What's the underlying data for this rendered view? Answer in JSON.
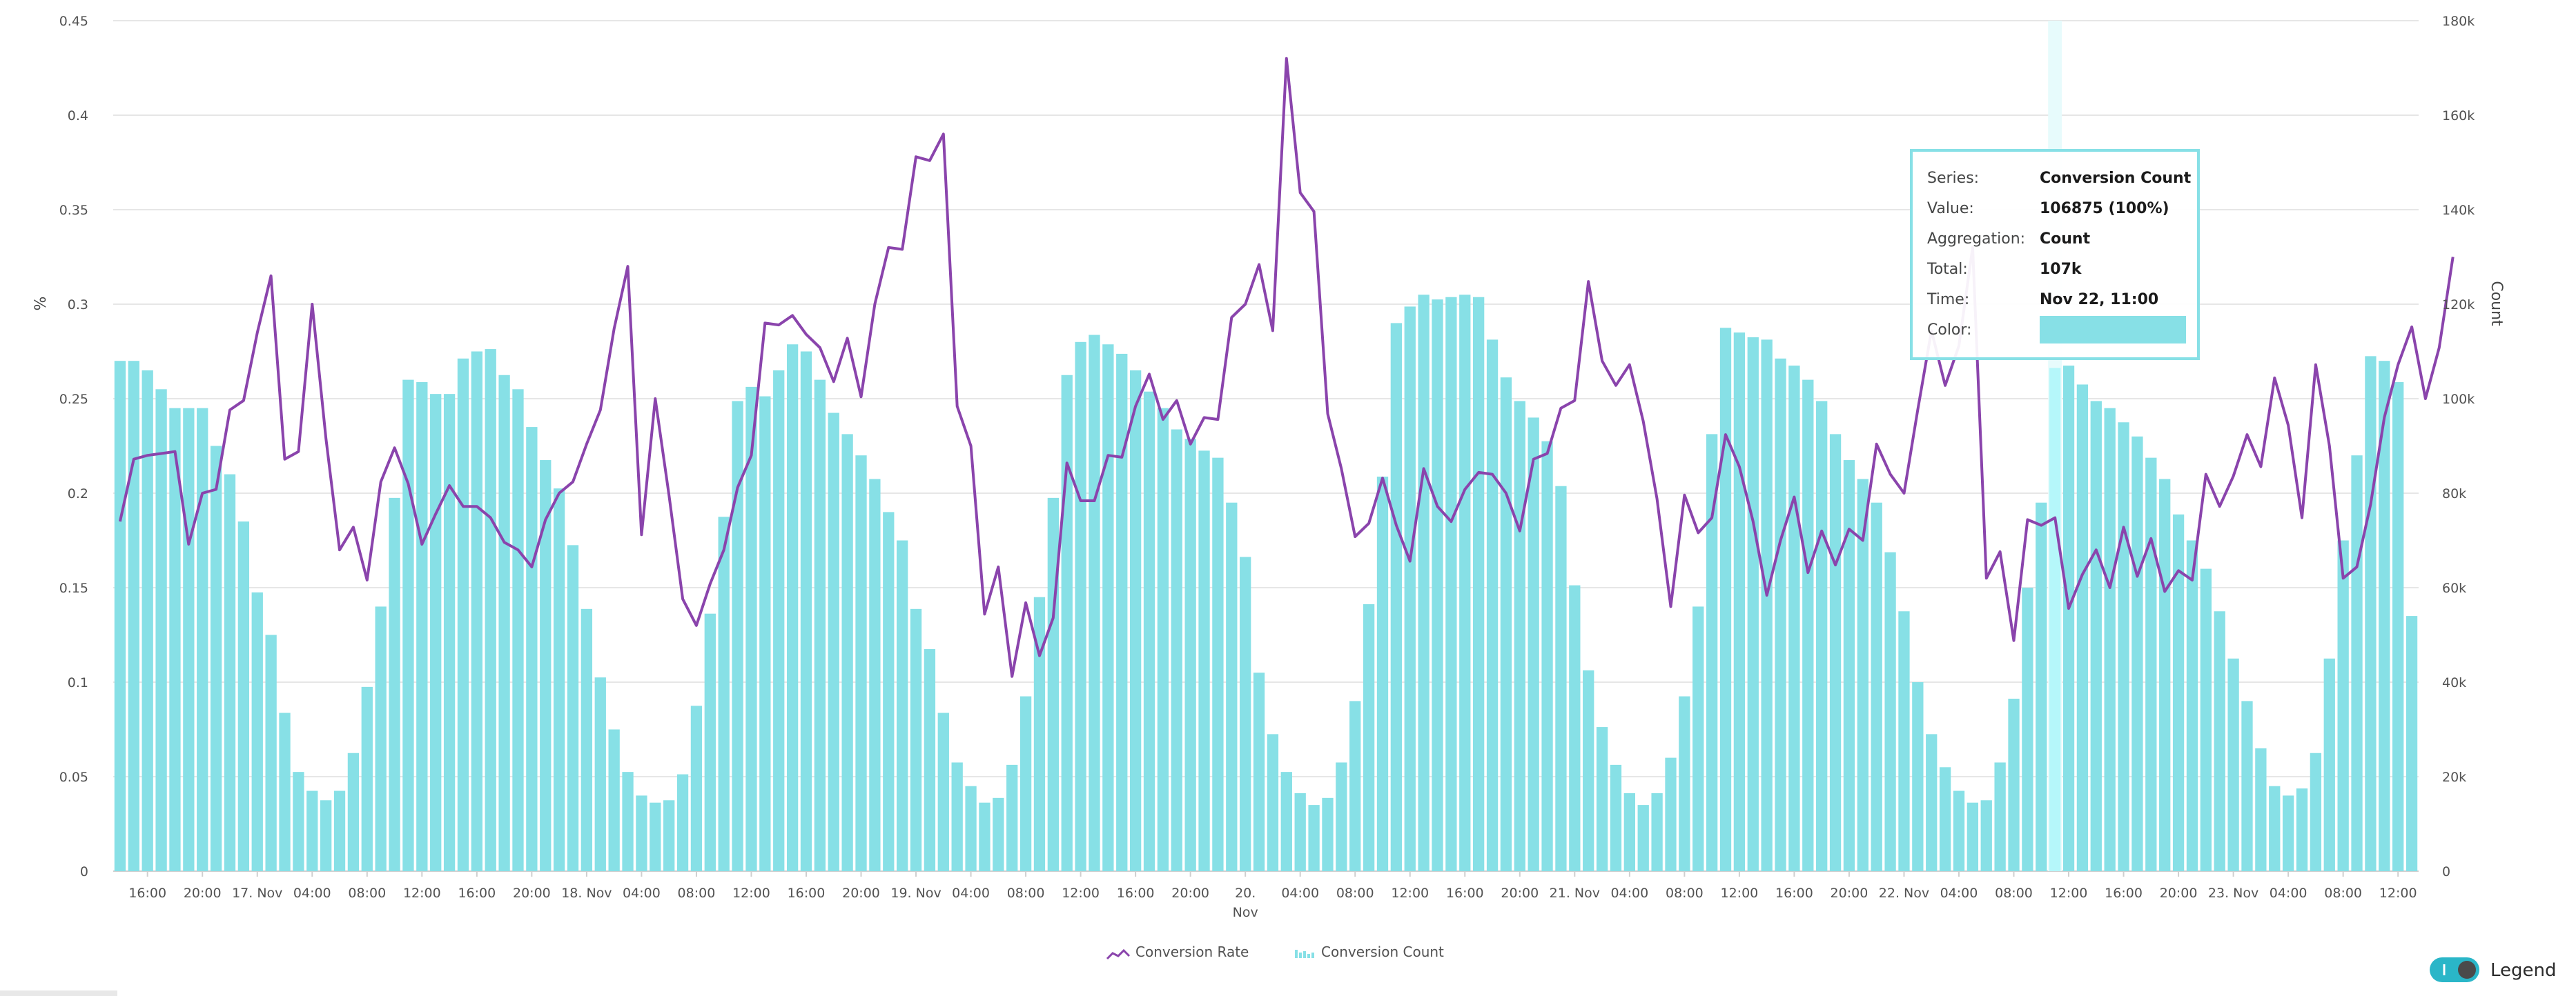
{
  "chart_data": {
    "type": "bar+line",
    "y_left": {
      "label": "%",
      "ticks": [
        "0",
        "0.05",
        "0.1",
        "0.15",
        "0.2",
        "0.25",
        "0.3",
        "0.35",
        "0.4",
        "0.45"
      ],
      "range": [
        0,
        0.45
      ]
    },
    "y_right": {
      "label": "Count",
      "ticks": [
        "0",
        "20k",
        "40k",
        "60k",
        "80k",
        "100k",
        "120k",
        "140k",
        "160k",
        "180k"
      ],
      "range": [
        0,
        180000
      ]
    },
    "x_ticks": [
      {
        "label": "16:00",
        "hour": 2
      },
      {
        "label": "20:00",
        "hour": 6
      },
      {
        "label": "17. Nov",
        "hour": 10
      },
      {
        "label": "04:00",
        "hour": 14
      },
      {
        "label": "08:00",
        "hour": 18
      },
      {
        "label": "12:00",
        "hour": 22
      },
      {
        "label": "16:00",
        "hour": 26
      },
      {
        "label": "20:00",
        "hour": 30
      },
      {
        "label": "18. Nov",
        "hour": 34
      },
      {
        "label": "04:00",
        "hour": 38
      },
      {
        "label": "08:00",
        "hour": 42
      },
      {
        "label": "12:00",
        "hour": 46
      },
      {
        "label": "16:00",
        "hour": 50
      },
      {
        "label": "20:00",
        "hour": 54
      },
      {
        "label": "19. Nov",
        "hour": 58
      },
      {
        "label": "04:00",
        "hour": 62
      },
      {
        "label": "08:00",
        "hour": 66
      },
      {
        "label": "12:00",
        "hour": 70
      },
      {
        "label": "16:00",
        "hour": 74
      },
      {
        "label": "20:00",
        "hour": 78
      },
      {
        "label": "20.",
        "label2": "Nov",
        "hour": 82
      },
      {
        "label": "04:00",
        "hour": 86
      },
      {
        "label": "08:00",
        "hour": 90
      },
      {
        "label": "12:00",
        "hour": 94
      },
      {
        "label": "16:00",
        "hour": 98
      },
      {
        "label": "20:00",
        "hour": 102
      },
      {
        "label": "21. Nov",
        "hour": 106
      },
      {
        "label": "04:00",
        "hour": 110
      },
      {
        "label": "08:00",
        "hour": 114
      },
      {
        "label": "12:00",
        "hour": 118
      },
      {
        "label": "16:00",
        "hour": 122
      },
      {
        "label": "20:00",
        "hour": 126
      },
      {
        "label": "22. Nov",
        "hour": 130
      },
      {
        "label": "04:00",
        "hour": 134
      },
      {
        "label": "08:00",
        "hour": 138
      },
      {
        "label": "12:00",
        "hour": 142
      },
      {
        "label": "16:00",
        "hour": 146
      },
      {
        "label": "20:00",
        "hour": 150
      },
      {
        "label": "23. Nov",
        "hour": 154
      },
      {
        "label": "04:00",
        "hour": 158
      },
      {
        "label": "08:00",
        "hour": 162
      },
      {
        "label": "12:00",
        "hour": 166
      }
    ],
    "bar_series": {
      "name": "Conversion Count",
      "color": "#87e0e6",
      "highlight_color": "#b5f7fa",
      "highlight_index": 141,
      "values": [
        108000,
        108000,
        106000,
        102000,
        98000,
        98000,
        98000,
        90000,
        84000,
        74000,
        59000,
        50000,
        33500,
        21000,
        17000,
        15000,
        17000,
        25000,
        39000,
        56000,
        79000,
        104000,
        103500,
        101000,
        101000,
        108500,
        110000,
        110500,
        105000,
        102000,
        94000,
        87000,
        81000,
        69000,
        55500,
        41000,
        30000,
        21000,
        16000,
        14500,
        15000,
        20500,
        35000,
        54500,
        75000,
        99500,
        102500,
        100500,
        106000,
        111500,
        110000,
        104000,
        97000,
        92500,
        88000,
        83000,
        76000,
        70000,
        55500,
        47000,
        33500,
        23000,
        18000,
        14500,
        15500,
        22500,
        37000,
        58000,
        79000,
        105000,
        112000,
        113500,
        111500,
        109500,
        106000,
        101500,
        98000,
        93500,
        91500,
        89000,
        87500,
        78000,
        66500,
        42000,
        29000,
        21000,
        16500,
        14000,
        15500,
        23000,
        36000,
        56500,
        83500,
        116000,
        119500,
        122000,
        121000,
        121500,
        122000,
        121500,
        112500,
        104500,
        99500,
        96000,
        91000,
        81500,
        60500,
        42500,
        30500,
        22500,
        16500,
        14000,
        16500,
        24000,
        37000,
        56000,
        92500,
        115000,
        114000,
        113000,
        112500,
        108500,
        107000,
        104000,
        99500,
        92500,
        87000,
        83000,
        78000,
        67500,
        55000,
        40000,
        29000,
        22000,
        17000,
        14500,
        15000,
        23000,
        36500,
        60000,
        78000,
        106500,
        107000,
        103000,
        99500,
        98000,
        95000,
        92000,
        87500,
        83000,
        75500,
        70000,
        64000,
        55000,
        45000,
        36000,
        26000,
        18000,
        16000,
        17500,
        25000,
        45000,
        70000,
        88000,
        109000,
        108000,
        103500,
        54000
      ]
    },
    "line_series": {
      "name": "Conversion Rate",
      "color": "#8a44ac",
      "values": [
        0.185,
        0.218,
        0.22,
        0.221,
        0.222,
        0.173,
        0.2,
        0.202,
        0.244,
        0.249,
        0.285,
        0.315,
        0.218,
        0.222,
        0.3,
        0.229,
        0.17,
        0.182,
        0.154,
        0.206,
        0.224,
        0.205,
        0.173,
        0.189,
        0.204,
        0.193,
        0.193,
        0.187,
        0.174,
        0.17,
        0.161,
        0.186,
        0.2,
        0.206,
        0.226,
        0.244,
        0.287,
        0.32,
        0.178,
        0.25,
        0.199,
        0.144,
        0.13,
        0.152,
        0.17,
        0.203,
        0.22,
        0.29,
        0.289,
        0.294,
        0.284,
        0.277,
        0.259,
        0.282,
        0.251,
        0.3,
        0.33,
        0.329,
        0.378,
        0.376,
        0.39,
        0.246,
        0.225,
        0.136,
        0.161,
        0.103,
        0.142,
        0.114,
        0.134,
        0.216,
        0.196,
        0.196,
        0.22,
        0.219,
        0.246,
        0.263,
        0.239,
        0.249,
        0.226,
        0.24,
        0.239,
        0.293,
        0.3,
        0.321,
        0.286,
        0.43,
        0.359,
        0.349,
        0.242,
        0.213,
        0.177,
        0.184,
        0.208,
        0.183,
        0.164,
        0.213,
        0.193,
        0.185,
        0.202,
        0.211,
        0.21,
        0.2,
        0.18,
        0.218,
        0.221,
        0.245,
        0.249,
        0.312,
        0.27,
        0.257,
        0.268,
        0.238,
        0.197,
        0.14,
        0.199,
        0.179,
        0.187,
        0.231,
        0.214,
        0.185,
        0.146,
        0.175,
        0.198,
        0.158,
        0.18,
        0.162,
        0.181,
        0.175,
        0.226,
        0.21,
        0.2,
        0.244,
        0.286,
        0.257,
        0.278,
        0.33,
        0.155,
        0.169,
        0.122,
        0.186,
        0.183,
        0.187,
        0.139,
        0.157,
        0.17,
        0.15,
        0.182,
        0.156,
        0.176,
        0.148,
        0.159,
        0.154,
        0.21,
        0.193,
        0.209,
        0.231,
        0.214,
        0.261,
        0.236,
        0.187,
        0.268,
        0.225,
        0.155,
        0.161,
        0.194,
        0.24,
        0.268,
        0.288,
        0.25,
        0.277,
        0.325
      ]
    }
  },
  "tooltip": {
    "rows": [
      {
        "label": "Series:",
        "value": "Conversion Count"
      },
      {
        "label": "Value:",
        "value": "106875 (100%)"
      },
      {
        "label": "Aggregation:",
        "value": "Count"
      },
      {
        "label": "Total:",
        "value": "107k"
      },
      {
        "label": "Time:",
        "value": "Nov 22, 11:00"
      },
      {
        "label": "Color:",
        "value": ""
      }
    ],
    "swatch_color": "#87e0e6"
  },
  "legend": {
    "items": [
      {
        "label": "Conversion Rate",
        "icon": "line-series-icon",
        "color": "#8a44ac"
      },
      {
        "label": "Conversion Count",
        "icon": "bar-series-icon",
        "color": "#87e0e6"
      }
    ]
  },
  "legend_toggle": {
    "label": "Legend",
    "on": true,
    "color": "#2ab6c8"
  }
}
